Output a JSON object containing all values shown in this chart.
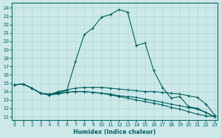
{
  "xlabel": "Humidex (Indice chaleur)",
  "x_ticks": [
    0,
    1,
    2,
    3,
    4,
    5,
    6,
    7,
    8,
    9,
    10,
    11,
    12,
    13,
    14,
    15,
    16,
    17,
    18,
    19,
    20,
    21,
    22,
    23
  ],
  "y_ticks": [
    11,
    12,
    13,
    14,
    15,
    16,
    17,
    18,
    19,
    20,
    21,
    22,
    23,
    24
  ],
  "xlim": [
    -0.3,
    23.3
  ],
  "ylim": [
    10.6,
    24.6
  ],
  "bg_color": "#cce8e8",
  "line_color": "#005f5f",
  "grid_color": "#aad4d4",
  "curves": [
    [
      14.8,
      14.9,
      14.4,
      13.8,
      13.7,
      13.9,
      14.1,
      17.6,
      20.8,
      21.6,
      22.9,
      23.2,
      23.8,
      23.5,
      19.5,
      19.8,
      16.5,
      14.5,
      13.2,
      13.4,
      12.2,
      12.0,
      11.5,
      11.0
    ],
    [
      14.8,
      14.9,
      14.4,
      13.8,
      13.6,
      14.0,
      14.2,
      14.4,
      14.5,
      14.5,
      14.5,
      14.4,
      14.3,
      14.2,
      14.1,
      14.0,
      14.0,
      13.9,
      13.8,
      13.7,
      13.5,
      13.3,
      12.5,
      11.2
    ],
    [
      14.8,
      14.9,
      14.4,
      13.8,
      13.6,
      13.8,
      13.9,
      14.0,
      14.0,
      13.9,
      13.8,
      13.7,
      13.5,
      13.4,
      13.3,
      13.1,
      12.9,
      12.7,
      12.5,
      12.3,
      12.1,
      11.9,
      11.5,
      11.0
    ],
    [
      14.8,
      14.9,
      14.4,
      13.8,
      13.6,
      13.7,
      13.9,
      14.0,
      14.0,
      13.9,
      13.8,
      13.6,
      13.4,
      13.2,
      13.0,
      12.8,
      12.6,
      12.4,
      12.1,
      11.9,
      11.6,
      11.3,
      11.1,
      11.0
    ]
  ]
}
